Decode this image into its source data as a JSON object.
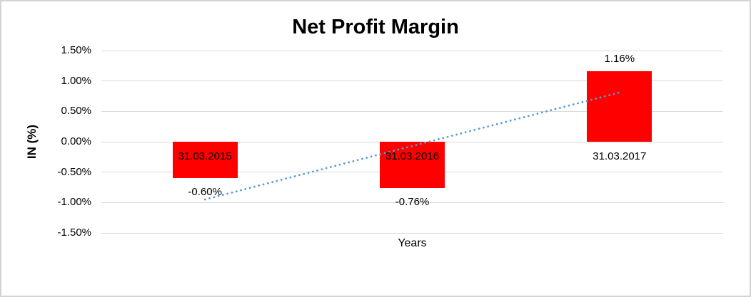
{
  "chart_data": {
    "type": "bar",
    "title": "Net Profit Margin",
    "xlabel": "Years",
    "ylabel": "IN (%)",
    "categories": [
      "31.03.2015",
      "31.03.2016",
      "31.03.2017"
    ],
    "values": [
      -0.6,
      -0.76,
      1.16
    ],
    "data_labels": [
      "-0.60%",
      "-0.76%",
      "1.16%"
    ],
    "ylim": [
      -1.5,
      1.5
    ],
    "ytick_step": 0.5,
    "ytick_labels": [
      "1.50%",
      "1.00%",
      "0.50%",
      "0.00%",
      "-0.50%",
      "-1.00%",
      "-1.50%"
    ],
    "grid": true,
    "legend": "none",
    "bar_color": "#FF0000",
    "gridline_color": "#D9D9D9",
    "text_color": "#000000",
    "trendline": {
      "type": "linear",
      "style": "dotted",
      "color": "#5B9BD5",
      "start_value": -0.95,
      "end_value": 0.81
    }
  }
}
